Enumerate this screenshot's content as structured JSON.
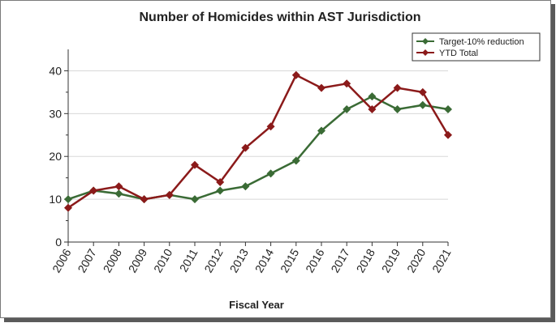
{
  "chart_data": {
    "type": "line",
    "title": "Number of Homicides within AST Jurisdiction",
    "xlabel": "Fiscal Year",
    "ylabel": "",
    "x": [
      "2006",
      "2007",
      "2008",
      "2009",
      "2010",
      "2011",
      "2012",
      "2013",
      "2014",
      "2015",
      "2016",
      "2017",
      "2018",
      "2019",
      "2020",
      "2021"
    ],
    "ylim": [
      0,
      45
    ],
    "yticks": [
      0,
      10,
      20,
      30,
      40
    ],
    "grid": "horizontal",
    "legend_position": "top-right",
    "series": [
      {
        "name": "Target-10% reduction",
        "color": "#3a6b35",
        "values": [
          10,
          12,
          11.3,
          10,
          11,
          10,
          12,
          13,
          16,
          19,
          26,
          31,
          34,
          31,
          32,
          31
        ]
      },
      {
        "name": "YTD Total",
        "color": "#8b1a1a",
        "values": [
          8,
          12,
          13,
          10,
          11,
          18,
          14,
          22,
          27,
          39,
          36,
          37,
          31,
          36,
          35,
          25
        ]
      }
    ]
  }
}
